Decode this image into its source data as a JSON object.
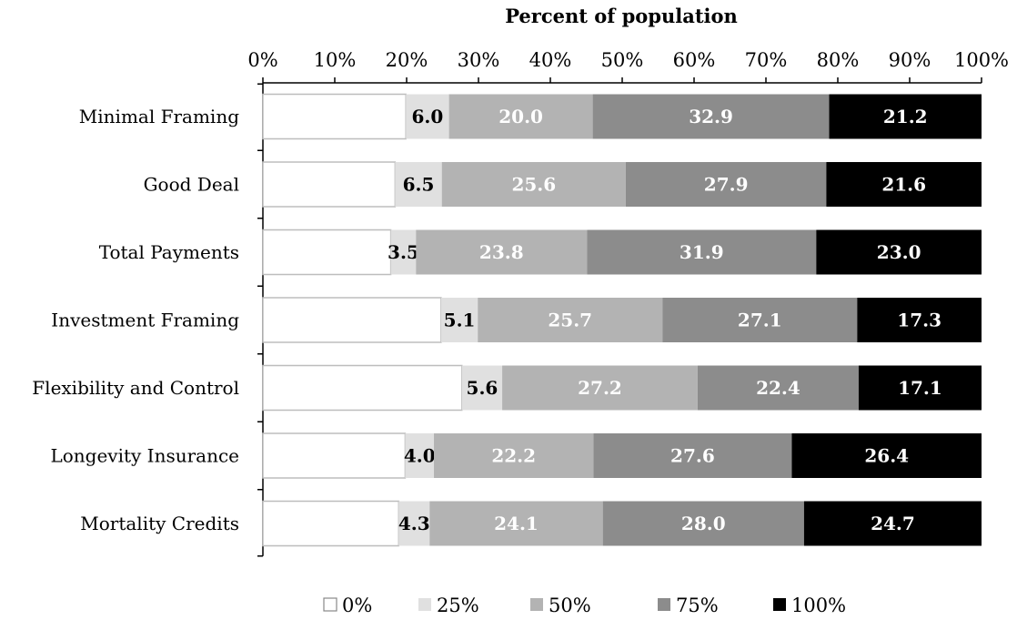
{
  "chart_data": {
    "type": "bar",
    "orientation": "horizontal",
    "stacked": "percent",
    "xlabel": "Percent of population",
    "x_ticks": [
      "0%",
      "10%",
      "20%",
      "30%",
      "40%",
      "50%",
      "60%",
      "70%",
      "80%",
      "90%",
      "100%"
    ],
    "xlim": [
      0,
      100
    ],
    "categories": [
      "Minimal Framing",
      "Good Deal",
      "Total Payments",
      "Investment Framing",
      "Flexibility and Control",
      "Longevity Insurance",
      "Mortality Credits"
    ],
    "series": [
      {
        "name": "0%",
        "color": "#ffffff",
        "label_color": "#000000",
        "show_labels": false,
        "values": [
          19.9,
          18.4,
          17.8,
          24.8,
          27.7,
          19.8,
          18.9
        ]
      },
      {
        "name": "25%",
        "color": "#e0e0e0",
        "label_color": "#000000",
        "show_labels": true,
        "values": [
          6.0,
          6.5,
          3.5,
          5.1,
          5.6,
          4.0,
          4.3
        ]
      },
      {
        "name": "50%",
        "color": "#b3b3b3",
        "label_color": "#ffffff",
        "show_labels": true,
        "values": [
          20.0,
          25.6,
          23.8,
          25.7,
          27.2,
          22.2,
          24.1
        ]
      },
      {
        "name": "75%",
        "color": "#8c8c8c",
        "label_color": "#ffffff",
        "show_labels": true,
        "values": [
          32.9,
          27.9,
          31.9,
          27.1,
          22.4,
          27.6,
          28.0
        ]
      },
      {
        "name": "100%",
        "color": "#000000",
        "label_color": "#ffffff",
        "show_labels": true,
        "values": [
          21.2,
          21.6,
          23.0,
          17.3,
          17.1,
          26.4,
          24.7
        ]
      }
    ],
    "legend_position": "bottom",
    "grid": false
  }
}
